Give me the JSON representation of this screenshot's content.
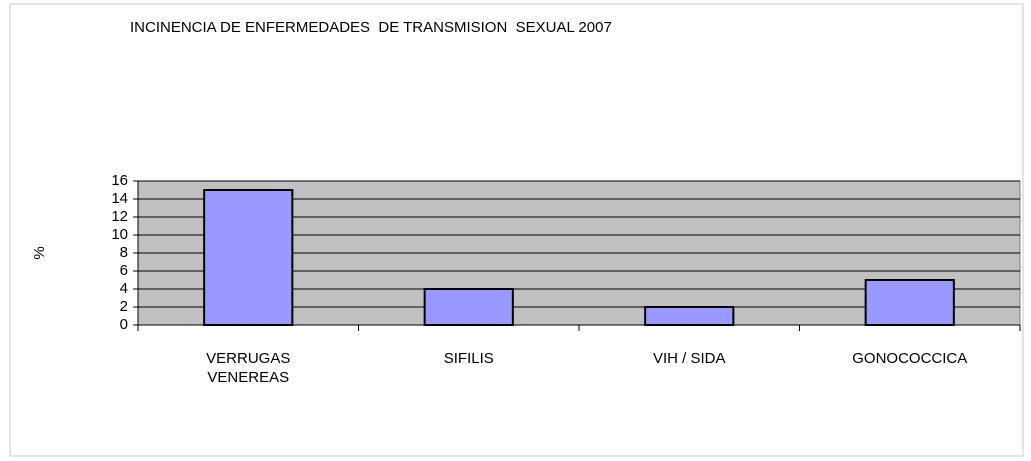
{
  "chart_data": {
    "type": "bar",
    "title": "INCINENCIA DE ENFERMEDADES  DE TRANSMISION  SEXUAL 2007",
    "y_label": "%",
    "categories": [
      "VERRUGAS VENEREAS",
      "SIFILIS",
      "VIH / SIDA",
      "GONOCOCCICA"
    ],
    "values": [
      15,
      4,
      2,
      5
    ],
    "color": "#9999ff",
    "background": "#c0c0c0",
    "ylim": [
      0,
      16
    ],
    "yticks": [
      0,
      2,
      4,
      6,
      8,
      10,
      12,
      14,
      16
    ],
    "grid": true
  }
}
